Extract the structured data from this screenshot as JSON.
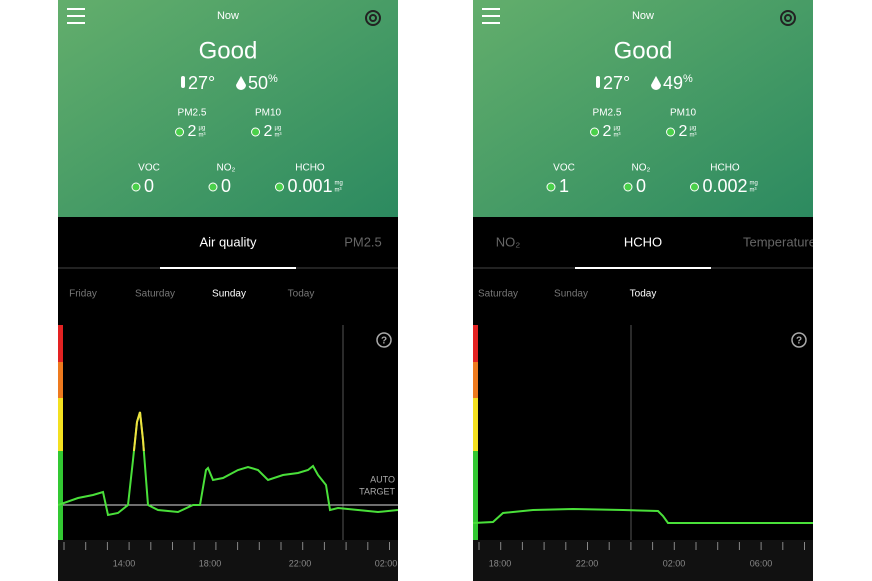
{
  "screens": [
    {
      "header": {
        "title": "Now",
        "status": "Good",
        "temperature": "27°",
        "humidity": "50",
        "humidity_unit": "%"
      },
      "readings": [
        {
          "label": "PM2.5",
          "value": "2",
          "unit_top": "µg",
          "unit_bottom": "m³"
        },
        {
          "label": "PM10",
          "value": "2",
          "unit_top": "µg",
          "unit_bottom": "m³"
        },
        {
          "label": "VOC",
          "value": "0"
        },
        {
          "label": "NO₂",
          "value": "0"
        },
        {
          "label": "HCHO",
          "value": "0.001",
          "unit_top": "mg",
          "unit_bottom": "m³"
        }
      ],
      "tabs": [
        "Air quality",
        "PM2.5"
      ],
      "active_tab": 0,
      "days": [
        "Friday",
        "Saturday",
        "Sunday",
        "Today"
      ],
      "active_day": 2,
      "help": "?",
      "target_label": [
        "AUTO",
        "TARGET"
      ],
      "times": [
        "14:00",
        "18:00",
        "22:00",
        "02:00"
      ]
    },
    {
      "header": {
        "title": "Now",
        "status": "Good",
        "temperature": "27°",
        "humidity": "49",
        "humidity_unit": "%"
      },
      "readings": [
        {
          "label": "PM2.5",
          "value": "2",
          "unit_top": "µg",
          "unit_bottom": "m³"
        },
        {
          "label": "PM10",
          "value": "2",
          "unit_top": "µg",
          "unit_bottom": "m³"
        },
        {
          "label": "VOC",
          "value": "1"
        },
        {
          "label": "NO₂",
          "value": "0"
        },
        {
          "label": "HCHO",
          "value": "0.002",
          "unit_top": "mg",
          "unit_bottom": "m³"
        }
      ],
      "tabs": [
        "NO₂",
        "HCHO",
        "Temperature"
      ],
      "active_tab": 1,
      "days": [
        "Saturday",
        "Sunday",
        "Today"
      ],
      "active_day": 2,
      "help": "?",
      "times": [
        "18:00",
        "22:00",
        "02:00",
        "06:00"
      ]
    }
  ]
}
